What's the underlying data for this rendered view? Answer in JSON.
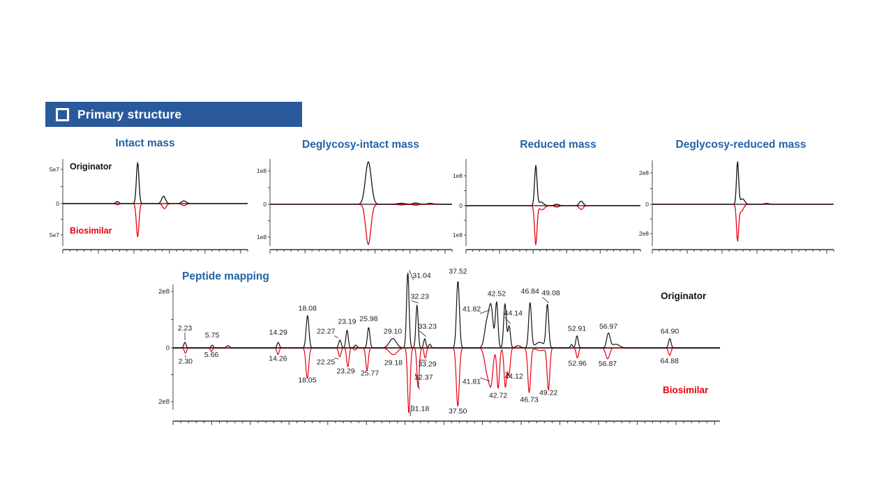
{
  "header": {
    "title": "Primary structure",
    "icon": "checkbox-square-icon"
  },
  "colors": {
    "header_bar": "#2B5A9C",
    "title_blue": "#2263A8",
    "originator": "#111111",
    "biosimilar": "#E60012"
  },
  "chart_data": [
    {
      "id": "intact_mass",
      "type": "line",
      "subtype": "mirrored-chromatogram",
      "title": "Intact mass",
      "y_axis": {
        "top_label": "5e7",
        "zero_label": "0",
        "bottom_label": "5e7",
        "unit_value": 50000000.0
      },
      "legend_position": "inside-left",
      "series": [
        {
          "name": "Originator",
          "color": "#111111",
          "direction": "up",
          "peaks": [
            {
              "x": 0.295,
              "i": 3000000.0,
              "w": 0.008
            },
            {
              "x": 0.405,
              "i": 60000000.0,
              "w": 0.007
            },
            {
              "x": 0.545,
              "i": 11000000.0,
              "w": 0.01
            },
            {
              "x": 0.655,
              "i": 4000000.0,
              "w": 0.012
            }
          ]
        },
        {
          "name": "Biosimilar",
          "color": "#E60012",
          "direction": "down",
          "peaks": [
            {
              "x": 0.295,
              "i": 2000000.0,
              "w": 0.008
            },
            {
              "x": 0.405,
              "i": 53000000.0,
              "w": 0.007
            },
            {
              "x": 0.55,
              "i": 8000000.0,
              "w": 0.01
            },
            {
              "x": 0.655,
              "i": 3000000.0,
              "w": 0.012
            }
          ]
        }
      ]
    },
    {
      "id": "deglycosy_intact_mass",
      "type": "line",
      "subtype": "mirrored-chromatogram",
      "title": "Deglycosy-intact mass",
      "y_axis": {
        "top_label": "1e8",
        "zero_label": "0",
        "bottom_label": "1e8",
        "unit_value": 100000000.0
      },
      "series": [
        {
          "name": "Originator",
          "color": "#111111",
          "direction": "up",
          "peaks": [
            {
              "x": 0.54,
              "i": 127000000.0,
              "w": 0.016
            },
            {
              "x": 0.72,
              "i": 3000000.0,
              "w": 0.02
            },
            {
              "x": 0.8,
              "i": 4000000.0,
              "w": 0.015
            },
            {
              "x": 0.88,
              "i": 3000000.0,
              "w": 0.015
            }
          ]
        },
        {
          "name": "Biosimilar",
          "color": "#E60012",
          "direction": "down",
          "peaks": [
            {
              "x": 0.54,
              "i": 123000000.0,
              "w": 0.014
            },
            {
              "x": 0.72,
              "i": 2000000.0,
              "w": 0.02
            },
            {
              "x": 0.8,
              "i": 3000000.0,
              "w": 0.015
            }
          ]
        }
      ]
    },
    {
      "id": "reduced_mass",
      "type": "line",
      "subtype": "mirrored-chromatogram",
      "title": "Reduced mass",
      "y_axis": {
        "top_label": "1e8",
        "zero_label": "0",
        "bottom_label": "1e8",
        "unit_value": 100000000.0
      },
      "series": [
        {
          "name": "Originator",
          "color": "#111111",
          "direction": "up",
          "peaks": [
            {
              "x": 0.4,
              "i": 133000000.0,
              "w": 0.007
            },
            {
              "x": 0.43,
              "i": 12000000.0,
              "w": 0.014
            },
            {
              "x": 0.52,
              "i": 5000000.0,
              "w": 0.012
            },
            {
              "x": 0.66,
              "i": 15000000.0,
              "w": 0.011
            }
          ]
        },
        {
          "name": "Biosimilar",
          "color": "#E60012",
          "direction": "down",
          "peaks": [
            {
              "x": 0.4,
              "i": 133000000.0,
              "w": 0.007
            },
            {
              "x": 0.435,
              "i": 14000000.0,
              "w": 0.015
            },
            {
              "x": 0.52,
              "i": 5000000.0,
              "w": 0.012
            },
            {
              "x": 0.66,
              "i": 13000000.0,
              "w": 0.011
            }
          ]
        }
      ]
    },
    {
      "id": "deglycosy_reduced_mass",
      "type": "line",
      "subtype": "mirrored-chromatogram",
      "title": "Deglycosy-reduced mass",
      "y_axis": {
        "top_label": "2e8",
        "zero_label": "0",
        "bottom_label": "2e8",
        "unit_value": 200000000.0
      },
      "series": [
        {
          "name": "Originator",
          "color": "#111111",
          "direction": "up",
          "peaks": [
            {
              "x": 0.47,
              "i": 270000000.0,
              "w": 0.006
            },
            {
              "x": 0.497,
              "i": 35000000.0,
              "w": 0.012
            },
            {
              "x": 0.63,
              "i": 6000000.0,
              "w": 0.012
            }
          ]
        },
        {
          "name": "Biosimilar",
          "color": "#E60012",
          "direction": "down",
          "peaks": [
            {
              "x": 0.47,
              "i": 240000000.0,
              "w": 0.006
            },
            {
              "x": 0.49,
              "i": 50000000.0,
              "w": 0.012
            }
          ]
        }
      ]
    },
    {
      "id": "peptide_mapping",
      "type": "line",
      "subtype": "mirrored-chromatogram",
      "title": "Peptide mapping",
      "x_axis": {
        "unit": "min",
        "range": [
          0,
          71
        ]
      },
      "y_axis": {
        "top_label": "2e8",
        "zero_label": "0",
        "bottom_label": "2e8",
        "unit_value": 200000000.0
      },
      "series": [
        {
          "name": "Originator",
          "color": "#111111",
          "direction": "up",
          "peaks": [
            {
              "t": 2.23,
              "i": 20000000.0,
              "w": 0.14,
              "label": "2.23",
              "dy": -10,
              "leader": true
            },
            {
              "t": 5.75,
              "i": 10000000.0,
              "w": 0.14,
              "label": "5.75",
              "dy": -4
            },
            {
              "t": 7.8,
              "i": 8000000.0,
              "w": 0.2
            },
            {
              "t": 14.29,
              "i": 20000000.0,
              "w": 0.14,
              "label": "14.29",
              "dy": -4
            },
            {
              "t": 18.08,
              "i": 115000000.0,
              "w": 0.18,
              "label": "18.08"
            },
            {
              "t": 22.27,
              "i": 28000000.0,
              "w": 0.16,
              "label": "22.27",
              "dx": -20,
              "dy": -2,
              "leader": true
            },
            {
              "t": 23.19,
              "i": 63000000.0,
              "w": 0.15,
              "label": "23.19",
              "dy": -2
            },
            {
              "t": 24.3,
              "i": 10000000.0,
              "w": 0.18
            },
            {
              "t": 25.98,
              "i": 73000000.0,
              "w": 0.16,
              "label": "25.98",
              "dy": -2
            },
            {
              "t": 29.1,
              "i": 33000000.0,
              "w": 0.45,
              "label": "29.10"
            },
            {
              "t": 31.04,
              "i": 268000000.0,
              "w": 0.16,
              "label": "31.04",
              "dx": 20,
              "dy": 15,
              "leader": true
            },
            {
              "t": 32.23,
              "i": 152000000.0,
              "w": 0.15,
              "label": "32.23",
              "dx": 4,
              "dy": -2,
              "leader": true
            },
            {
              "t": 33.23,
              "i": 33000000.0,
              "w": 0.14,
              "label": "33.23",
              "dx": 4,
              "dy": -7,
              "leader": true
            },
            {
              "t": 33.9,
              "i": 13000000.0,
              "w": 0.14
            },
            {
              "t": 37.52,
              "i": 238000000.0,
              "w": 0.19,
              "label": "37.52",
              "dy": -3
            },
            {
              "t": 41.3,
              "i": 95000000.0,
              "w": 0.32
            },
            {
              "t": 41.82,
              "i": 127000000.0,
              "w": 0.25,
              "label": "41.82",
              "dx": -28,
              "dy": 6,
              "leader": true
            },
            {
              "t": 42.52,
              "i": 162000000.0,
              "w": 0.17,
              "label": "42.52",
              "dy": -2
            },
            {
              "t": 43.6,
              "i": 157000000.0,
              "w": 0.17
            },
            {
              "t": 44.14,
              "i": 78000000.0,
              "w": 0.16,
              "label": "44.14",
              "dx": 6,
              "dy": -8,
              "leader": true
            },
            {
              "t": 45.3,
              "i": 8000000.0,
              "w": 0.3
            },
            {
              "t": 46.84,
              "i": 160000000.0,
              "w": 0.18,
              "label": "46.84",
              "dy": -6
            },
            {
              "t": 48.1,
              "i": 20000000.0,
              "w": 0.55
            },
            {
              "t": 49.08,
              "i": 152000000.0,
              "w": 0.17,
              "label": "49.08",
              "dx": 5,
              "dy": -7,
              "leader": true
            },
            {
              "t": 52.2,
              "i": 12000000.0,
              "w": 0.14
            },
            {
              "t": 52.91,
              "i": 43000000.0,
              "w": 0.15,
              "label": "52.91"
            },
            {
              "t": 56.97,
              "i": 51000000.0,
              "w": 0.22,
              "label": "56.97"
            },
            {
              "t": 57.9,
              "i": 13000000.0,
              "w": 0.5
            },
            {
              "t": 64.9,
              "i": 33000000.0,
              "w": 0.16,
              "label": "64.90"
            }
          ]
        },
        {
          "name": "Biosimilar",
          "color": "#E60012",
          "direction": "down",
          "peaks": [
            {
              "t": 2.3,
              "i": 20000000.0,
              "w": 0.14,
              "label": "2.30",
              "leader": true
            },
            {
              "t": 5.66,
              "i": 13000000.0,
              "w": 0.14,
              "label": "5.66",
              "dy": -7
            },
            {
              "t": 14.26,
              "i": 25000000.0,
              "w": 0.14,
              "label": "14.26",
              "dy": -6
            },
            {
              "t": 18.05,
              "i": 115000000.0,
              "w": 0.18,
              "label": "18.05",
              "dy": -10
            },
            {
              "t": 22.25,
              "i": 33000000.0,
              "w": 0.16,
              "label": "22.25",
              "dx": -20,
              "dy": -4,
              "leader": true
            },
            {
              "t": 23.29,
              "i": 71000000.0,
              "w": 0.15,
              "label": "23.29",
              "dx": -3,
              "dy": -6
            },
            {
              "t": 24.2,
              "i": 8000000.0,
              "w": 0.18
            },
            {
              "t": 25.77,
              "i": 84000000.0,
              "w": 0.16,
              "label": "25.77",
              "dx": 4,
              "dy": -8
            },
            {
              "t": 29.18,
              "i": 25000000.0,
              "w": 0.5,
              "label": "29.18"
            },
            {
              "t": 31.18,
              "i": 246000000.0,
              "w": 0.16,
              "label": "31.18",
              "dx": 16,
              "dy": -19,
              "leader": true
            },
            {
              "t": 32.37,
              "i": 147000000.0,
              "w": 0.15,
              "label": "32.37",
              "dx": 8,
              "dy": -26,
              "leader": true
            },
            {
              "t": 33.29,
              "i": 38000000.0,
              "w": 0.14,
              "label": "33.29",
              "dx": 3,
              "dy": -3,
              "leader": true
            },
            {
              "t": 37.5,
              "i": 218000000.0,
              "w": 0.19,
              "label": "37.50",
              "dy": -5
            },
            {
              "t": 41.3,
              "i": 90000000.0,
              "w": 0.32
            },
            {
              "t": 41.81,
              "i": 116000000.0,
              "w": 0.25,
              "label": "41.81",
              "dx": -28,
              "dy": -8,
              "leader": true
            },
            {
              "t": 42.72,
              "i": 152000000.0,
              "w": 0.17,
              "label": "42.72",
              "dy": -2
            },
            {
              "t": 43.65,
              "i": 147000000.0,
              "w": 0.17
            },
            {
              "t": 44.12,
              "i": 101000000.0,
              "w": 0.16,
              "label": "44.12",
              "dx": 7,
              "dy": -10,
              "leader": true
            },
            {
              "t": 46.73,
              "i": 167000000.0,
              "w": 0.18,
              "label": "46.73",
              "dy": -2
            },
            {
              "t": 48.2,
              "i": 10000000.0,
              "w": 0.55
            },
            {
              "t": 49.22,
              "i": 157000000.0,
              "w": 0.17,
              "label": "49.22",
              "dy": -8
            },
            {
              "t": 52.96,
              "i": 38000000.0,
              "w": 0.15,
              "label": "52.96",
              "dy": -4
            },
            {
              "t": 56.87,
              "i": 41000000.0,
              "w": 0.25,
              "label": "56.87",
              "dy": -5
            },
            {
              "t": 64.88,
              "i": 28000000.0,
              "w": 0.16,
              "label": "64.88",
              "dy": -4
            }
          ]
        }
      ]
    }
  ]
}
